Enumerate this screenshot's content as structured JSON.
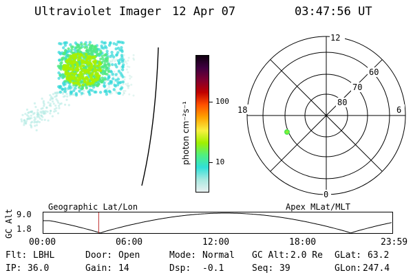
{
  "header": {
    "instrument": "Ultraviolet Imager",
    "date": "12 Apr 07",
    "time": "03:47:56 UT"
  },
  "colorbar": {
    "label": "photon cm⁻²s⁻¹",
    "ticks": [
      "100",
      "10"
    ],
    "colors": [
      "#e8f0f0",
      "#a8e8e0",
      "#30e0d8",
      "#50f080",
      "#a0f000",
      "#f8f040",
      "#ffa000",
      "#ff5000",
      "#c00000",
      "#800030",
      "#400040",
      "#100010"
    ]
  },
  "polar_plot": {
    "mlt_labels": {
      "top": "12",
      "left": "18",
      "right": "6",
      "bottom": "0"
    },
    "lat_labels": [
      "60",
      "70",
      "80"
    ]
  },
  "altitude_strip": {
    "left_title": "Geographic Lat/Lon",
    "right_title": "Apex MLat/MLT",
    "ylabel": "GC Alt",
    "y_ticks": [
      "9.0",
      "1.8"
    ],
    "x_ticks": [
      "00:00",
      "06:00",
      "12:00",
      "18:00",
      "23:59"
    ],
    "current_hour": 3.8
  },
  "footer": {
    "flt_label": "Flt:",
    "flt_value": "LBHL",
    "ip_label": "IP:",
    "ip_value": "36.0",
    "door_label": "Door:",
    "door_value": "Open",
    "gain_label": "Gain:",
    "gain_value": "14",
    "mode_label": "Mode:",
    "mode_value": "Normal",
    "dsp_label": "Dsp:",
    "dsp_value": "-0.1",
    "gcalt_label": "GC Alt:",
    "gcalt_value": "2.0 Re",
    "seq_label": "Seq:",
    "seq_value": "39",
    "glat_label": "GLat:",
    "glat_value": "63.2",
    "glon_label": "GLon:",
    "glon_value": "247.4"
  }
}
